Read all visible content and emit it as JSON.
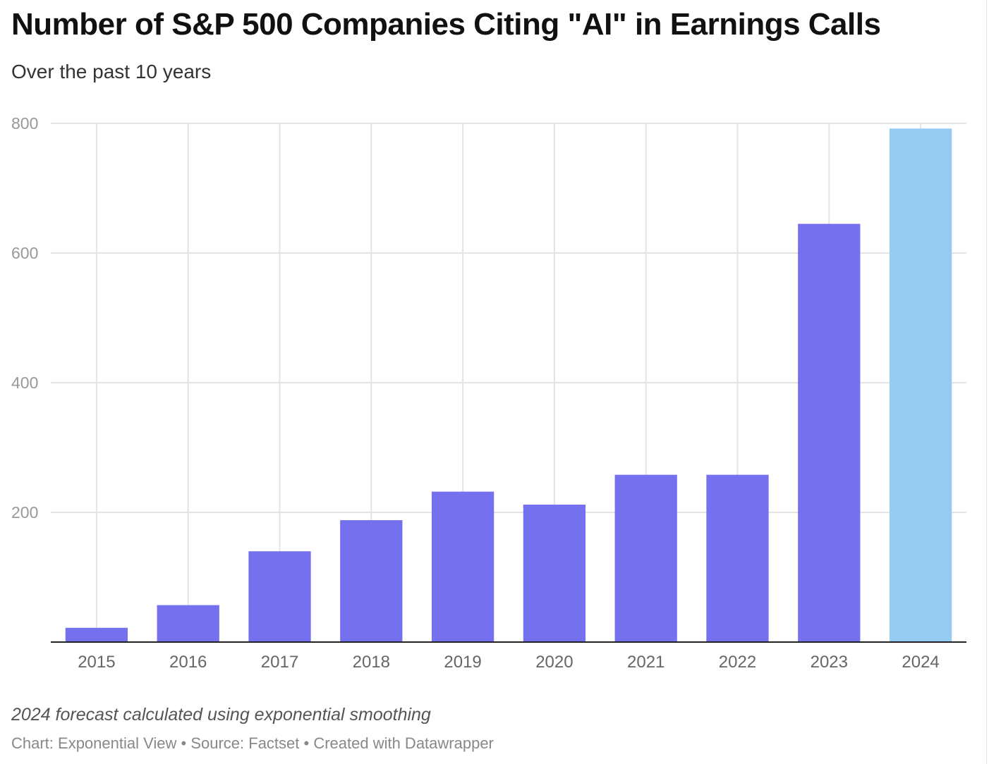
{
  "chart_data": {
    "type": "bar",
    "title": "Number of S&P 500 Companies Citing \"AI\" in Earnings Calls",
    "subtitle": "Over the past 10 years",
    "categories": [
      "2015",
      "2016",
      "2017",
      "2018",
      "2019",
      "2020",
      "2021",
      "2022",
      "2023",
      "2024"
    ],
    "values": [
      22,
      57,
      140,
      188,
      232,
      212,
      258,
      258,
      645,
      792
    ],
    "forecast_categories": [
      "2024"
    ],
    "ylim": [
      0,
      800
    ],
    "y_ticks": [
      200,
      400,
      600,
      800
    ],
    "y_tick_labels": [
      "200",
      "400",
      "600",
      "800"
    ],
    "xlabel": "",
    "ylabel": "",
    "grid": true,
    "colors": {
      "bar": "#7570ed",
      "forecast_bar": "#95cbf0",
      "grid": "#e4e4e4",
      "axis": "#222222",
      "tick_text": "#999999",
      "category_text": "#666666"
    }
  },
  "footer": {
    "note": "2024 forecast calculated using exponential smoothing",
    "credits": "Chart: Exponential View • Source: Factset • Created with Datawrapper"
  }
}
